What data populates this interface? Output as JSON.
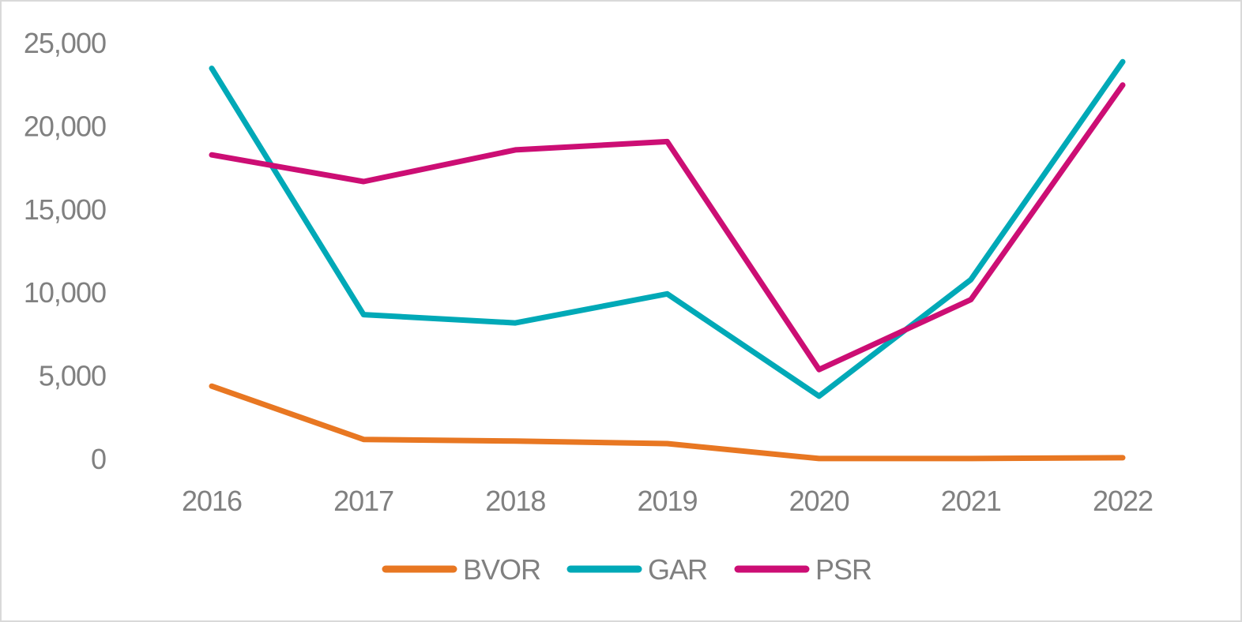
{
  "chart_data": {
    "type": "line",
    "categories": [
      "2016",
      "2017",
      "2018",
      "2019",
      "2020",
      "2021",
      "2022"
    ],
    "series": [
      {
        "name": "BVOR",
        "color": "#e87722",
        "values": [
          4400,
          1200,
          1100,
          950,
          50,
          50,
          100
        ]
      },
      {
        "name": "GAR",
        "color": "#00a9b7",
        "values": [
          23500,
          8700,
          8200,
          9950,
          3800,
          10800,
          23900
        ]
      },
      {
        "name": "PSR",
        "color": "#cc0e74",
        "values": [
          18300,
          16700,
          18600,
          19100,
          5400,
          9600,
          22500
        ]
      }
    ],
    "ylim": [
      0,
      25000
    ],
    "y_ticks": [
      "0",
      "5,000",
      "10,000",
      "15,000",
      "20,000",
      "25,000"
    ],
    "y_tick_values": [
      0,
      5000,
      10000,
      15000,
      20000,
      25000
    ],
    "grid": false,
    "legend": "bottom",
    "title": "",
    "xlabel": "",
    "ylabel": ""
  }
}
